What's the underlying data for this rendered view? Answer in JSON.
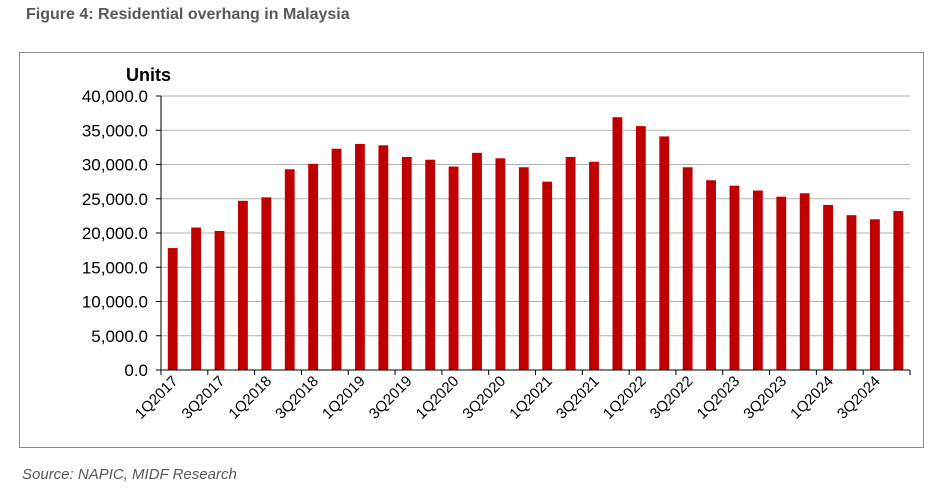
{
  "figure_title": "Figure 4: Residential overhang in Malaysia",
  "source_note": "Source: NAPIC, MIDF Research",
  "colors": {
    "bar": "#c00000",
    "grid": "#b3b3b3",
    "axis": "#000000",
    "frame": "#8c8c8c"
  },
  "chart_data": {
    "type": "bar",
    "title": "",
    "xlabel": "",
    "ylabel": "Units",
    "ylim": [
      0,
      40000
    ],
    "yticks": [
      "0.0",
      "5,000.0",
      "10,000.0",
      "15,000.0",
      "20,000.0",
      "25,000.0",
      "30,000.0",
      "35,000.0",
      "40,000.0"
    ],
    "grid": true,
    "legend": "none",
    "categories": [
      "1Q2017",
      "2Q2017",
      "3Q2017",
      "4Q2017",
      "1Q2018",
      "2Q2018",
      "3Q2018",
      "4Q2018",
      "1Q2019",
      "2Q2019",
      "3Q2019",
      "4Q2019",
      "1Q2020",
      "2Q2020",
      "3Q2020",
      "4Q2020",
      "1Q2021",
      "2Q2021",
      "3Q2021",
      "4Q2021",
      "1Q2022",
      "2Q2022",
      "3Q2022",
      "4Q2022",
      "1Q2023",
      "2Q2023",
      "3Q2023",
      "4Q2023",
      "1Q2024",
      "2Q2024",
      "3Q2024",
      "4Q2024"
    ],
    "visible_xtick_labels": [
      "1Q2017",
      "3Q2017",
      "1Q2018",
      "3Q2018",
      "1Q2019",
      "3Q2019",
      "1Q2020",
      "3Q2020",
      "1Q2021",
      "3Q2021",
      "1Q2022",
      "3Q2022",
      "1Q2023",
      "3Q2023",
      "1Q2024",
      "3Q2024"
    ],
    "values": [
      17800,
      20800,
      20300,
      24700,
      25200,
      29300,
      30100,
      32300,
      33000,
      32800,
      31100,
      30700,
      29700,
      31700,
      30900,
      29600,
      27500,
      31100,
      30400,
      36900,
      35600,
      34100,
      29600,
      27700,
      26900,
      26200,
      25300,
      25800,
      24100,
      22600,
      22000,
      23200
    ]
  }
}
